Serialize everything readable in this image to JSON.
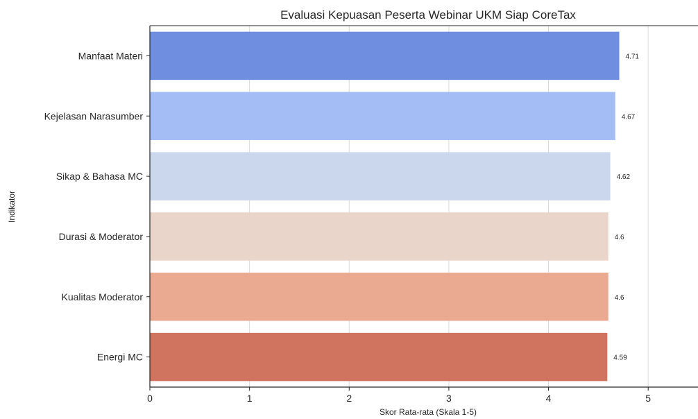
{
  "chart_data": {
    "type": "bar",
    "orientation": "horizontal",
    "title": "Evaluasi Kepuasan Peserta Webinar UKM Siap CoreTax",
    "xlabel": "Skor Rata-rata (Skala 1-5)",
    "ylabel": "Indikator",
    "categories": [
      "Manfaat Materi",
      "Kejelasan Narasumber",
      "Sikap & Bahasa MC",
      "Durasi & Moderator",
      "Kualitas Moderator",
      "Energi MC"
    ],
    "values": [
      4.71,
      4.67,
      4.62,
      4.6,
      4.6,
      4.59
    ],
    "data_labels": [
      "4.71",
      "4.67",
      "4.62",
      "4.6",
      "4.6",
      "4.59"
    ],
    "colors": [
      "#6f8edf",
      "#a4bef5",
      "#cad7ec",
      "#ead5cb",
      "#eaaa92",
      "#d0735f"
    ],
    "xlim": [
      0,
      5.5
    ],
    "xticks": [
      0,
      1,
      2,
      3,
      4,
      5
    ],
    "xtick_labels": [
      "0",
      "1",
      "2",
      "3",
      "4",
      "5"
    ],
    "grid": "x"
  }
}
